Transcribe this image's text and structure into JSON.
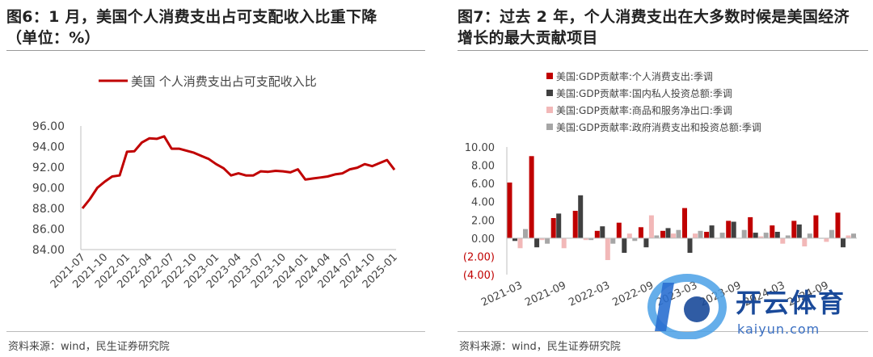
{
  "left": {
    "title_line1": "图6：1 月，美国个人消费支出占可支配收入比重下降",
    "title_line2": "（单位：%）",
    "source": "资料来源：wind，民生证券研究院"
  },
  "right": {
    "title_line1": "图7：过去 2 年，个人消费支出在大多数时候是美国经济",
    "title_line2": "增长的最大贡献项目",
    "source": "资料来源：wind，民生证券研究院"
  },
  "watermark": {
    "name": "开云体育",
    "url": "kaiyun.com"
  },
  "chart_data": [
    {
      "type": "line",
      "title": "",
      "legend": [
        "美国 个人消费支出占可支配收入比"
      ],
      "legend_position": "top",
      "color": "#c00000",
      "ylim": [
        84,
        96
      ],
      "yticks": [
        "84.00",
        "86.00",
        "88.00",
        "90.00",
        "92.00",
        "94.00",
        "96.00"
      ],
      "xticks": [
        "2021-07",
        "2021-10",
        "2022-01",
        "2022-04",
        "2022-07",
        "2022-10",
        "2023-01",
        "2023-04",
        "2023-07",
        "2023-10",
        "2024-01",
        "2024-04",
        "2024-07",
        "2024-10",
        "2025-01"
      ],
      "series": [
        {
          "name": "美国 个人消费支出占可支配收入比",
          "x": [
            "2021-07",
            "2021-08",
            "2021-09",
            "2021-10",
            "2021-11",
            "2021-12",
            "2022-01",
            "2022-02",
            "2022-03",
            "2022-04",
            "2022-05",
            "2022-06",
            "2022-07",
            "2022-08",
            "2022-09",
            "2022-10",
            "2022-11",
            "2022-12",
            "2023-01",
            "2023-02",
            "2023-03",
            "2023-04",
            "2023-05",
            "2023-06",
            "2023-07",
            "2023-08",
            "2023-09",
            "2023-10",
            "2023-11",
            "2023-12",
            "2024-01",
            "2024-02",
            "2024-03",
            "2024-04",
            "2024-05",
            "2024-06",
            "2024-07",
            "2024-08",
            "2024-09",
            "2024-10",
            "2024-11",
            "2024-12",
            "2025-01"
          ],
          "values": [
            88.0,
            88.9,
            90.0,
            90.6,
            91.1,
            91.2,
            93.5,
            93.55,
            94.4,
            94.8,
            94.75,
            95.0,
            93.8,
            93.8,
            93.6,
            93.4,
            93.1,
            92.8,
            92.3,
            91.9,
            91.2,
            91.4,
            91.2,
            91.2,
            91.6,
            91.55,
            91.65,
            91.6,
            91.5,
            91.8,
            90.8,
            90.9,
            91.0,
            91.1,
            91.3,
            91.4,
            91.8,
            91.95,
            92.3,
            92.1,
            92.4,
            92.7,
            91.75
          ]
        }
      ]
    },
    {
      "type": "bar",
      "title": "",
      "ylim": [
        -4,
        10
      ],
      "yticks": [
        "(4.00)",
        "(2.00)",
        "0.00",
        "2.00",
        "4.00",
        "6.00",
        "8.00",
        "10.00"
      ],
      "xticks": [
        "2021-03",
        "2021-09",
        "2022-03",
        "2022-09",
        "2023-03",
        "2023-09",
        "2024-03",
        "2024-09"
      ],
      "legend_position": "top-left",
      "categories": [
        "2021-03",
        "2021-06",
        "2021-09",
        "2021-12",
        "2022-03",
        "2022-06",
        "2022-09",
        "2022-12",
        "2023-03",
        "2023-06",
        "2023-09",
        "2023-12",
        "2024-03",
        "2024-06",
        "2024-09",
        "2024-12"
      ],
      "series": [
        {
          "name": "美国:GDP贡献率:个人消费支出:季调",
          "color": "#c00000",
          "values": [
            6.1,
            9.0,
            2.2,
            3.0,
            0.8,
            1.7,
            1.2,
            0.8,
            3.3,
            0.7,
            1.9,
            2.3,
            1.4,
            1.9,
            2.5,
            2.8
          ]
        },
        {
          "name": "美国:GDP贡献率:国内私人投资总额:季调",
          "color": "#404040",
          "values": [
            -0.3,
            -1.0,
            2.7,
            4.7,
            1.3,
            -1.6,
            -1.0,
            1.1,
            -1.6,
            1.4,
            1.8,
            0.6,
            0.7,
            1.5,
            0.0,
            -1.0
          ]
        },
        {
          "name": "美国:GDP贡献率:商品和服务净出口:季调",
          "color": "#f2b8b8",
          "values": [
            -1.1,
            -0.2,
            -1.1,
            -0.2,
            -2.4,
            0.5,
            2.5,
            0.5,
            0.5,
            0.0,
            0.0,
            0.2,
            -0.6,
            -0.9,
            -0.4,
            0.3
          ]
        },
        {
          "name": "美国:GDP贡献率:政府消费支出和投资总额:季调",
          "color": "#a6a6a6",
          "values": [
            1.0,
            -0.6,
            0.0,
            -0.2,
            -0.6,
            -0.3,
            0.3,
            0.9,
            0.8,
            0.6,
            0.9,
            0.6,
            0.3,
            0.5,
            0.9,
            0.5
          ]
        }
      ]
    }
  ]
}
